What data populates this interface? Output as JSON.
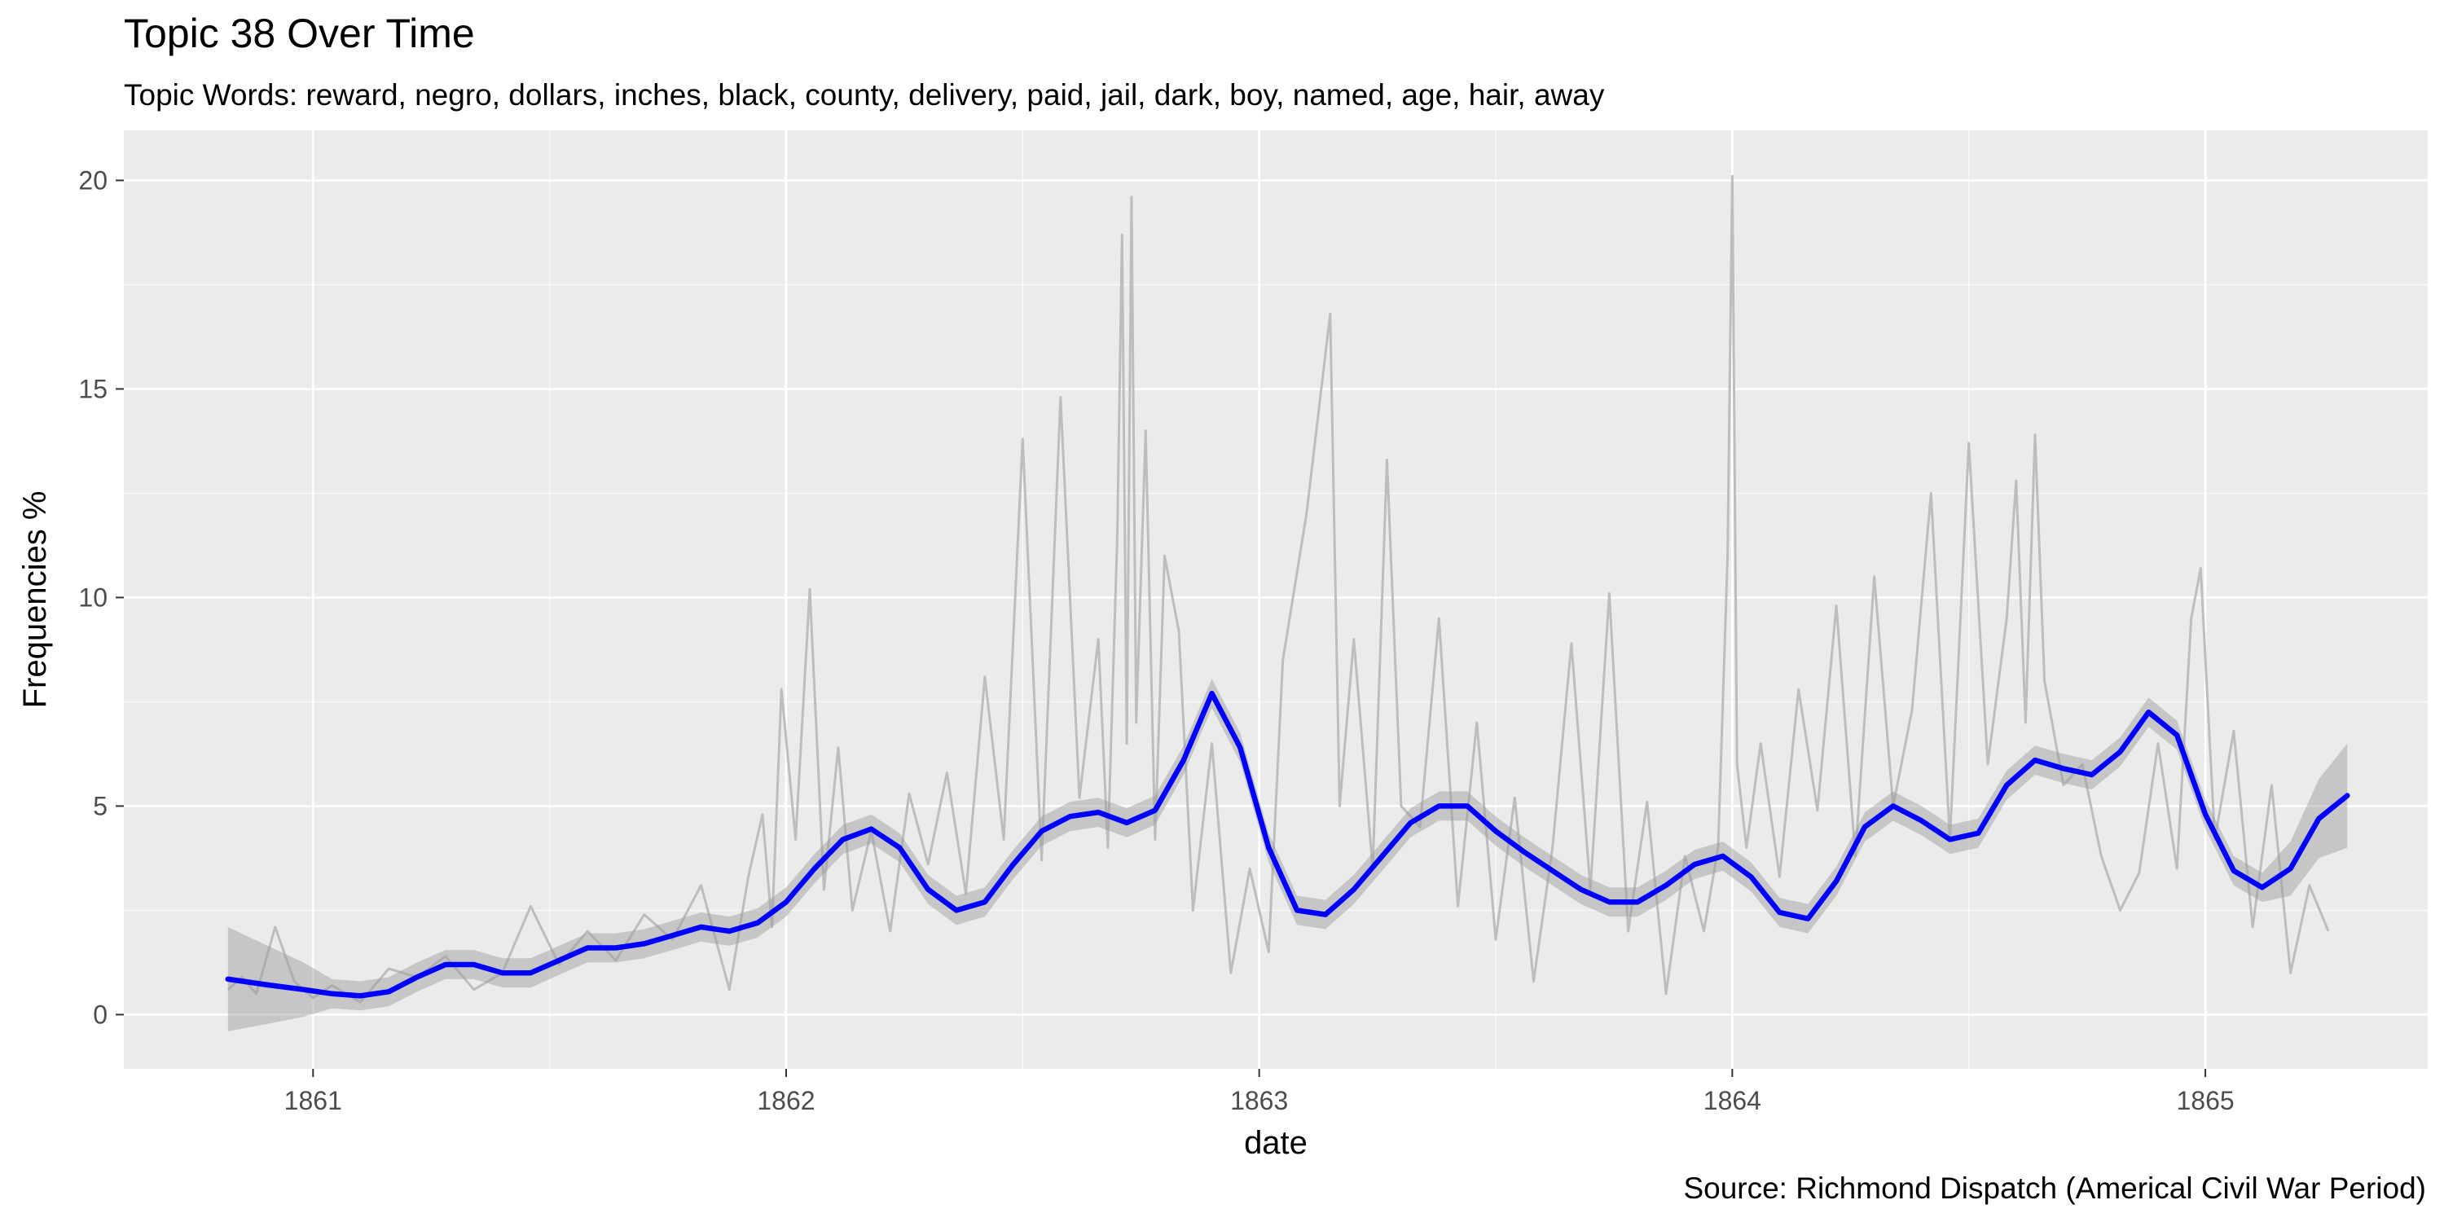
{
  "chart_data": {
    "type": "line",
    "title": "Topic 38 Over Time",
    "subtitle": "Topic Words: reward, negro, dollars, inches, black, county, delivery, paid, jail, dark, boy, named, age, hair, away",
    "caption": "Source: Richmond Dispatch (Americal Civil War Period)",
    "xlabel": "date",
    "ylabel": "Frequencies %",
    "xlim": [
      1860.6,
      1865.47
    ],
    "ylim": [
      -1.3,
      21.2
    ],
    "x_ticks": [
      1861,
      1862,
      1863,
      1864,
      1865
    ],
    "x_tick_labels": [
      "1861",
      "1862",
      "1863",
      "1864",
      "1865"
    ],
    "y_ticks": [
      0,
      5,
      10,
      15,
      20
    ],
    "y_tick_labels": [
      "0",
      "5",
      "10",
      "15",
      "20"
    ],
    "grid": true,
    "colors": {
      "panel": "#ebebeb",
      "grid_major": "#ffffff",
      "raw_series": "#bdbdbd",
      "smooth_series": "#0000ff",
      "ribbon": "#9a9a9a"
    },
    "series": [
      {
        "style": "raw-thin-gray",
        "x": [
          1860.82,
          1860.85,
          1860.88,
          1860.92,
          1860.96,
          1861.0,
          1861.04,
          1861.1,
          1861.16,
          1861.22,
          1861.28,
          1861.34,
          1861.4,
          1861.46,
          1861.52,
          1861.58,
          1861.64,
          1861.7,
          1861.76,
          1861.82,
          1861.88,
          1861.92,
          1861.95,
          1861.97,
          1861.99,
          1862.02,
          1862.05,
          1862.08,
          1862.11,
          1862.14,
          1862.18,
          1862.22,
          1862.26,
          1862.3,
          1862.34,
          1862.38,
          1862.42,
          1862.46,
          1862.5,
          1862.54,
          1862.58,
          1862.62,
          1862.66,
          1862.68,
          1862.7,
          1862.71,
          1862.72,
          1862.73,
          1862.74,
          1862.76,
          1862.78,
          1862.8,
          1862.83,
          1862.86,
          1862.9,
          1862.94,
          1862.98,
          1863.02,
          1863.05,
          1863.1,
          1863.15,
          1863.17,
          1863.2,
          1863.24,
          1863.27,
          1863.3,
          1863.34,
          1863.38,
          1863.42,
          1863.46,
          1863.5,
          1863.54,
          1863.58,
          1863.62,
          1863.66,
          1863.7,
          1863.74,
          1863.78,
          1863.82,
          1863.86,
          1863.9,
          1863.94,
          1863.97,
          1863.99,
          1864.0,
          1864.01,
          1864.03,
          1864.06,
          1864.1,
          1864.14,
          1864.18,
          1864.22,
          1864.26,
          1864.3,
          1864.34,
          1864.38,
          1864.42,
          1864.46,
          1864.5,
          1864.54,
          1864.58,
          1864.6,
          1864.62,
          1864.64,
          1864.66,
          1864.7,
          1864.74,
          1864.78,
          1864.82,
          1864.86,
          1864.9,
          1864.94,
          1864.97,
          1864.99,
          1865.02,
          1865.06,
          1865.1,
          1865.14,
          1865.18,
          1865.22,
          1865.26
        ],
        "y": [
          0.6,
          0.9,
          0.5,
          2.1,
          0.8,
          0.4,
          0.7,
          0.3,
          1.1,
          0.9,
          1.4,
          0.6,
          1.0,
          2.6,
          1.2,
          2.0,
          1.3,
          2.4,
          1.8,
          3.1,
          0.6,
          3.3,
          4.8,
          2.1,
          7.8,
          4.2,
          10.2,
          3.0,
          6.4,
          2.5,
          4.4,
          2.0,
          5.3,
          3.6,
          5.8,
          2.9,
          8.1,
          4.2,
          13.8,
          3.7,
          14.8,
          5.2,
          9.0,
          4.0,
          11.5,
          18.7,
          6.5,
          19.6,
          7.0,
          14.0,
          4.2,
          11.0,
          9.2,
          2.5,
          6.5,
          1.0,
          3.5,
          1.5,
          8.5,
          12.0,
          16.8,
          5.0,
          9.0,
          3.5,
          13.3,
          5.0,
          4.5,
          9.5,
          2.6,
          7.0,
          1.8,
          5.2,
          0.8,
          4.0,
          8.9,
          3.0,
          10.1,
          2.0,
          5.1,
          0.5,
          3.8,
          2.0,
          4.0,
          11.0,
          20.1,
          6.0,
          4.0,
          6.5,
          3.3,
          7.8,
          4.9,
          9.8,
          3.8,
          10.5,
          5.0,
          7.3,
          12.5,
          4.2,
          13.7,
          6.0,
          9.5,
          12.8,
          7.0,
          13.9,
          8.0,
          5.5,
          6.0,
          3.8,
          2.5,
          3.4,
          6.5,
          3.5,
          9.5,
          10.7,
          4.2,
          6.8,
          2.1,
          5.5,
          1.0,
          3.1,
          2.0
        ]
      },
      {
        "style": "smooth-blue",
        "x": [
          1860.82,
          1860.9,
          1860.98,
          1861.04,
          1861.1,
          1861.16,
          1861.22,
          1861.28,
          1861.34,
          1861.4,
          1861.46,
          1861.52,
          1861.58,
          1861.64,
          1861.7,
          1861.76,
          1861.82,
          1861.88,
          1861.94,
          1862.0,
          1862.06,
          1862.12,
          1862.18,
          1862.24,
          1862.3,
          1862.36,
          1862.42,
          1862.48,
          1862.54,
          1862.6,
          1862.66,
          1862.72,
          1862.78,
          1862.84,
          1862.9,
          1862.96,
          1863.02,
          1863.08,
          1863.14,
          1863.2,
          1863.26,
          1863.32,
          1863.38,
          1863.44,
          1863.5,
          1863.56,
          1863.62,
          1863.68,
          1863.74,
          1863.8,
          1863.86,
          1863.92,
          1863.98,
          1864.04,
          1864.1,
          1864.16,
          1864.22,
          1864.28,
          1864.34,
          1864.4,
          1864.46,
          1864.52,
          1864.58,
          1864.64,
          1864.7,
          1864.76,
          1864.82,
          1864.88,
          1864.94,
          1865.0,
          1865.06,
          1865.12,
          1865.18,
          1865.24,
          1865.3
        ],
        "y": [
          0.85,
          0.72,
          0.6,
          0.5,
          0.45,
          0.55,
          0.9,
          1.2,
          1.2,
          1.0,
          1.0,
          1.3,
          1.6,
          1.6,
          1.7,
          1.9,
          2.1,
          2.0,
          2.2,
          2.7,
          3.5,
          4.2,
          4.45,
          4.0,
          3.0,
          2.5,
          2.7,
          3.6,
          4.4,
          4.75,
          4.85,
          4.6,
          4.9,
          6.1,
          7.7,
          6.4,
          4.0,
          2.5,
          2.4,
          3.0,
          3.8,
          4.6,
          5.0,
          5.0,
          4.4,
          3.9,
          3.45,
          3.0,
          2.7,
          2.7,
          3.1,
          3.6,
          3.8,
          3.3,
          2.45,
          2.3,
          3.2,
          4.5,
          5.0,
          4.65,
          4.2,
          4.35,
          5.5,
          6.1,
          5.9,
          5.75,
          6.3,
          7.25,
          6.7,
          4.8,
          3.45,
          3.05,
          3.5,
          4.7,
          5.25
        ]
      }
    ]
  }
}
